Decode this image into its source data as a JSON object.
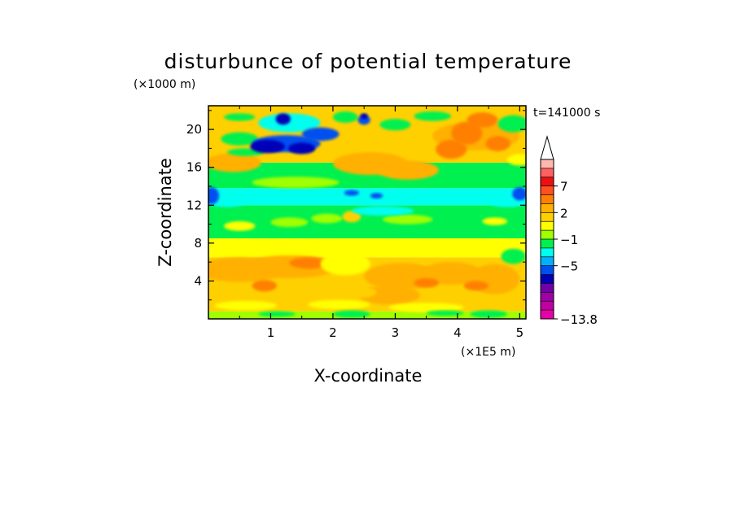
{
  "chart_data": {
    "type": "heatmap",
    "title": "disturbunce of potential temperature",
    "xlabel": "X-coordinate",
    "ylabel": "Z-coordinate",
    "x_unit": "(×1E5 m)",
    "y_unit": "(×1000 m)",
    "time_label": "t=141000 s",
    "xlim": [
      0,
      5.1
    ],
    "ylim": [
      0,
      22.5
    ],
    "x_ticks": [
      "1",
      "2",
      "3",
      "4",
      "5"
    ],
    "y_ticks": [
      "4",
      "8",
      "12",
      "16",
      "20"
    ],
    "colorbar": {
      "extend": "max",
      "colors": [
        "#e800a8",
        "#c000a0",
        "#a000a8",
        "#7000a8",
        "#0000b8",
        "#0050f0",
        "#00b0ff",
        "#00ffee",
        "#00f050",
        "#a0ff00",
        "#ffff00",
        "#ffd000",
        "#ffb000",
        "#ff8000",
        "#ff5020",
        "#ee1010",
        "#ff6060",
        "#ffb8b0"
      ],
      "labels": [
        "7",
        "2",
        "−1",
        "−5",
        "−13.8"
      ]
    },
    "bands": [
      {
        "z": [
          0.0,
          0.8
        ],
        "level": "0 to 1",
        "color": "#a0ff00"
      },
      {
        "z": [
          0.8,
          6.5
        ],
        "level": "1 to 2 with patches above 2",
        "color": "#ffd000"
      },
      {
        "z": [
          6.5,
          8.5
        ],
        "level": "1 to 2",
        "color": "#ffff00"
      },
      {
        "z": [
          8.5,
          12.0
        ],
        "level": "-1 to 0",
        "color": "#00f050"
      },
      {
        "z": [
          12.0,
          13.8
        ],
        "level": "-2 to -1",
        "color": "#00ffee"
      },
      {
        "z": [
          13.8,
          16.5
        ],
        "level": "-1 to 1 mixed",
        "color": "#00f050"
      },
      {
        "z": [
          16.5,
          22.5
        ],
        "level": "mixed, -5 to 7",
        "color": "#ffd000"
      }
    ]
  }
}
